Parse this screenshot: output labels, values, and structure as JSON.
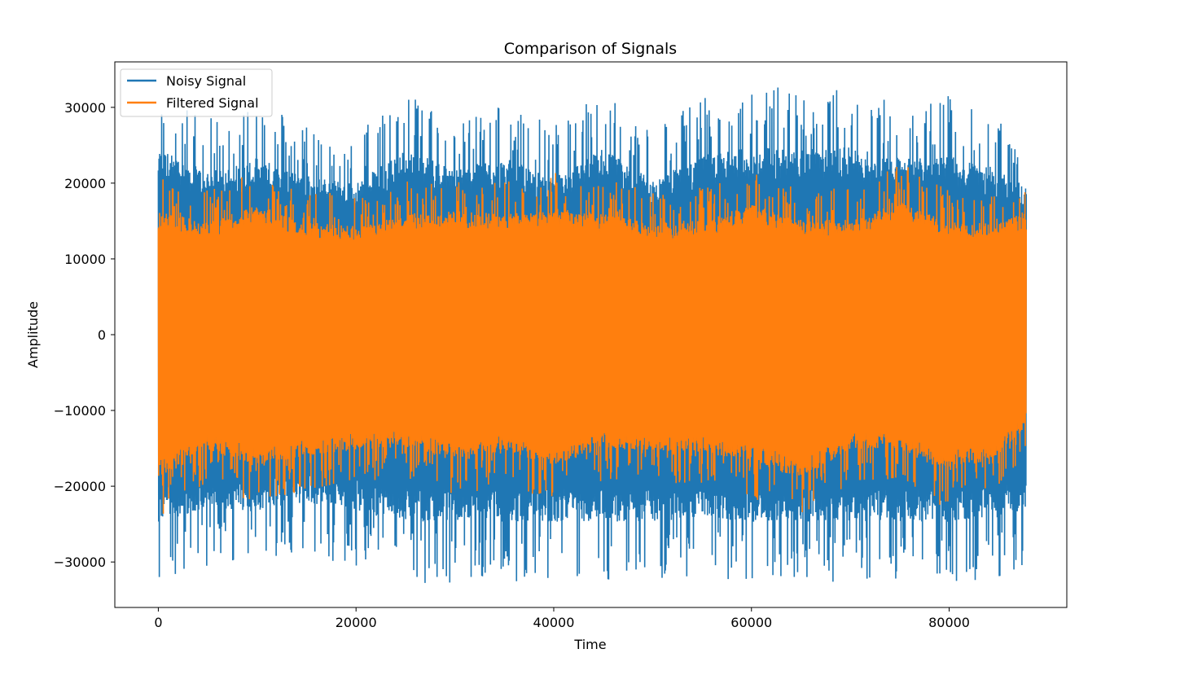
{
  "chart_data": {
    "type": "line",
    "title": "Comparison of Signals",
    "xlabel": "Time",
    "ylabel": "Amplitude",
    "xlim": [
      -4400,
      91900
    ],
    "ylim": [
      -36000,
      36000
    ],
    "x_ticks": [
      0,
      20000,
      40000,
      60000,
      80000
    ],
    "x_tick_labels": [
      "0",
      "20000",
      "40000",
      "60000",
      "80000"
    ],
    "y_ticks": [
      -30000,
      -20000,
      -10000,
      0,
      10000,
      20000,
      30000
    ],
    "y_tick_labels": [
      "−30000",
      "−20000",
      "−10000",
      "0",
      "10000",
      "20000",
      "30000"
    ],
    "grid": false,
    "legend_position": "top-left",
    "x_range": [
      0,
      87800
    ],
    "series": [
      {
        "name": "Noisy Signal",
        "color": "#1f77b4",
        "envelope_upper": [
          [
            0,
            32800
          ],
          [
            5000,
            28500
          ],
          [
            10000,
            31000
          ],
          [
            15000,
            28000
          ],
          [
            20000,
            26500
          ],
          [
            25000,
            32800
          ],
          [
            30000,
            29000
          ],
          [
            35000,
            31000
          ],
          [
            40000,
            27500
          ],
          [
            45000,
            32800
          ],
          [
            50000,
            27000
          ],
          [
            55000,
            31500
          ],
          [
            60000,
            32800
          ],
          [
            65000,
            32800
          ],
          [
            70000,
            32800
          ],
          [
            75000,
            31000
          ],
          [
            80000,
            31500
          ],
          [
            85000,
            29000
          ],
          [
            87800,
            26000
          ]
        ],
        "envelope_lower": [
          [
            0,
            -32800
          ],
          [
            5000,
            -30500
          ],
          [
            10000,
            -31000
          ],
          [
            15000,
            -29500
          ],
          [
            20000,
            -31000
          ],
          [
            25000,
            -32800
          ],
          [
            30000,
            -32800
          ],
          [
            35000,
            -32800
          ],
          [
            40000,
            -32800
          ],
          [
            45000,
            -32800
          ],
          [
            50000,
            -32800
          ],
          [
            55000,
            -32000
          ],
          [
            60000,
            -32800
          ],
          [
            65000,
            -32800
          ],
          [
            70000,
            -32800
          ],
          [
            75000,
            -32800
          ],
          [
            80000,
            -32800
          ],
          [
            85000,
            -32000
          ],
          [
            87800,
            -30500
          ]
        ]
      },
      {
        "name": "Filtered Signal",
        "color": "#ff7f0e",
        "envelope_upper": [
          [
            0,
            21000
          ],
          [
            5000,
            19000
          ],
          [
            10000,
            22000
          ],
          [
            15000,
            19000
          ],
          [
            20000,
            18500
          ],
          [
            25000,
            20500
          ],
          [
            30000,
            21000
          ],
          [
            35000,
            20500
          ],
          [
            40000,
            21500
          ],
          [
            45000,
            20500
          ],
          [
            50000,
            19000
          ],
          [
            55000,
            19500
          ],
          [
            60000,
            22000
          ],
          [
            65000,
            19500
          ],
          [
            70000,
            19500
          ],
          [
            75000,
            23000
          ],
          [
            80000,
            19000
          ],
          [
            85000,
            19000
          ],
          [
            87800,
            21000
          ]
        ],
        "envelope_lower": [
          [
            0,
            -24500
          ],
          [
            5000,
            -19500
          ],
          [
            10000,
            -22500
          ],
          [
            15000,
            -20500
          ],
          [
            20000,
            -19500
          ],
          [
            25000,
            -19000
          ],
          [
            30000,
            -21500
          ],
          [
            35000,
            -20000
          ],
          [
            40000,
            -22000
          ],
          [
            45000,
            -19500
          ],
          [
            50000,
            -19500
          ],
          [
            55000,
            -20000
          ],
          [
            60000,
            -21500
          ],
          [
            65000,
            -24500
          ],
          [
            70000,
            -19500
          ],
          [
            75000,
            -19500
          ],
          [
            80000,
            -23500
          ],
          [
            85000,
            -20500
          ],
          [
            87800,
            -15500
          ]
        ]
      }
    ]
  }
}
